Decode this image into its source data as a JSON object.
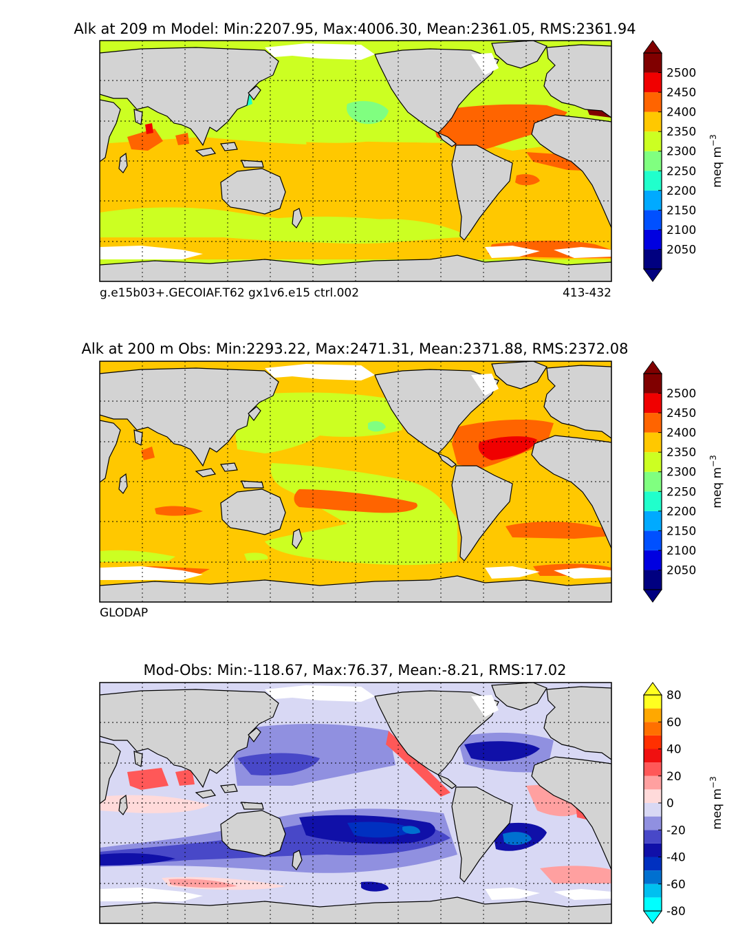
{
  "colors": {
    "land": "#d3d3d3",
    "ice": "#ffffff",
    "frame": "#000000"
  },
  "chart_data": [
    {
      "type": "heatmap",
      "title": "Alk at 209 m Model: Min:2207.95, Max:4006.30, Mean:2361.05, RMS:2361.94",
      "footer_left": "g.e15b03+.GECOIAF.T62 gx1v6.e15 ctrl.002",
      "footer_right": "413-432",
      "colorbar": {
        "label": "meq m",
        "label_sup": "−3",
        "ticks": [
          "2050",
          "2100",
          "2150",
          "2200",
          "2250",
          "2300",
          "2350",
          "2400",
          "2450",
          "2500"
        ],
        "levels": [
          2000,
          2050,
          2100,
          2150,
          2200,
          2250,
          2300,
          2350,
          2400,
          2450,
          2500,
          2550
        ],
        "colors": [
          "#000080",
          "#0000e0",
          "#0050ff",
          "#00aaff",
          "#20ffcc",
          "#80ff80",
          "#ccff22",
          "#ffc800",
          "#ff6400",
          "#f00000",
          "#800000"
        ],
        "extend_low": "#000080",
        "extend_high": "#800000"
      },
      "statistics": {
        "min": 2207.95,
        "max": 4006.3,
        "mean": 2361.05,
        "rms": 2361.94
      }
    },
    {
      "type": "heatmap",
      "title": "Alk at 200 m Obs: Min:2293.22, Max:2471.31, Mean:2371.88, RMS:2372.08",
      "footer_left": "GLODAP",
      "footer_right": "",
      "colorbar": {
        "label": "meq m",
        "label_sup": "−3",
        "ticks": [
          "2050",
          "2100",
          "2150",
          "2200",
          "2250",
          "2300",
          "2350",
          "2400",
          "2450",
          "2500"
        ],
        "levels": [
          2000,
          2050,
          2100,
          2150,
          2200,
          2250,
          2300,
          2350,
          2400,
          2450,
          2500,
          2550
        ],
        "colors": [
          "#000080",
          "#0000e0",
          "#0050ff",
          "#00aaff",
          "#20ffcc",
          "#80ff80",
          "#ccff22",
          "#ffc800",
          "#ff6400",
          "#f00000",
          "#800000"
        ],
        "extend_low": "#000080",
        "extend_high": "#800000"
      },
      "statistics": {
        "min": 2293.22,
        "max": 2471.31,
        "mean": 2371.88,
        "rms": 2372.08
      }
    },
    {
      "type": "heatmap",
      "title": "Mod-Obs: Min:-118.67, Max:76.37, Mean:-8.21, RMS:17.02",
      "footer_left": "",
      "footer_right": "",
      "colorbar": {
        "label": "meq m",
        "label_sup": "−3",
        "ticks": [
          "-80",
          "-60",
          "-40",
          "-20",
          "0",
          "20",
          "40",
          "60",
          "80"
        ],
        "levels": [
          -80,
          -70,
          -60,
          -50,
          -40,
          -30,
          -20,
          -10,
          0,
          10,
          20,
          30,
          40,
          50,
          60,
          70,
          80
        ],
        "colors": [
          "#00ffff",
          "#00c0f0",
          "#0070d0",
          "#0030c0",
          "#1010a8",
          "#4848c8",
          "#9090e0",
          "#d8d8f4",
          "#ffdada",
          "#ffa0a0",
          "#ff5858",
          "#f01010",
          "#ff3000",
          "#ff7000",
          "#ffa800",
          "#ffff20"
        ],
        "extend_low": "#00ffff",
        "extend_high": "#ffff20"
      },
      "statistics": {
        "min": -118.67,
        "max": 76.37,
        "mean": -8.21,
        "rms": 17.02
      }
    }
  ]
}
